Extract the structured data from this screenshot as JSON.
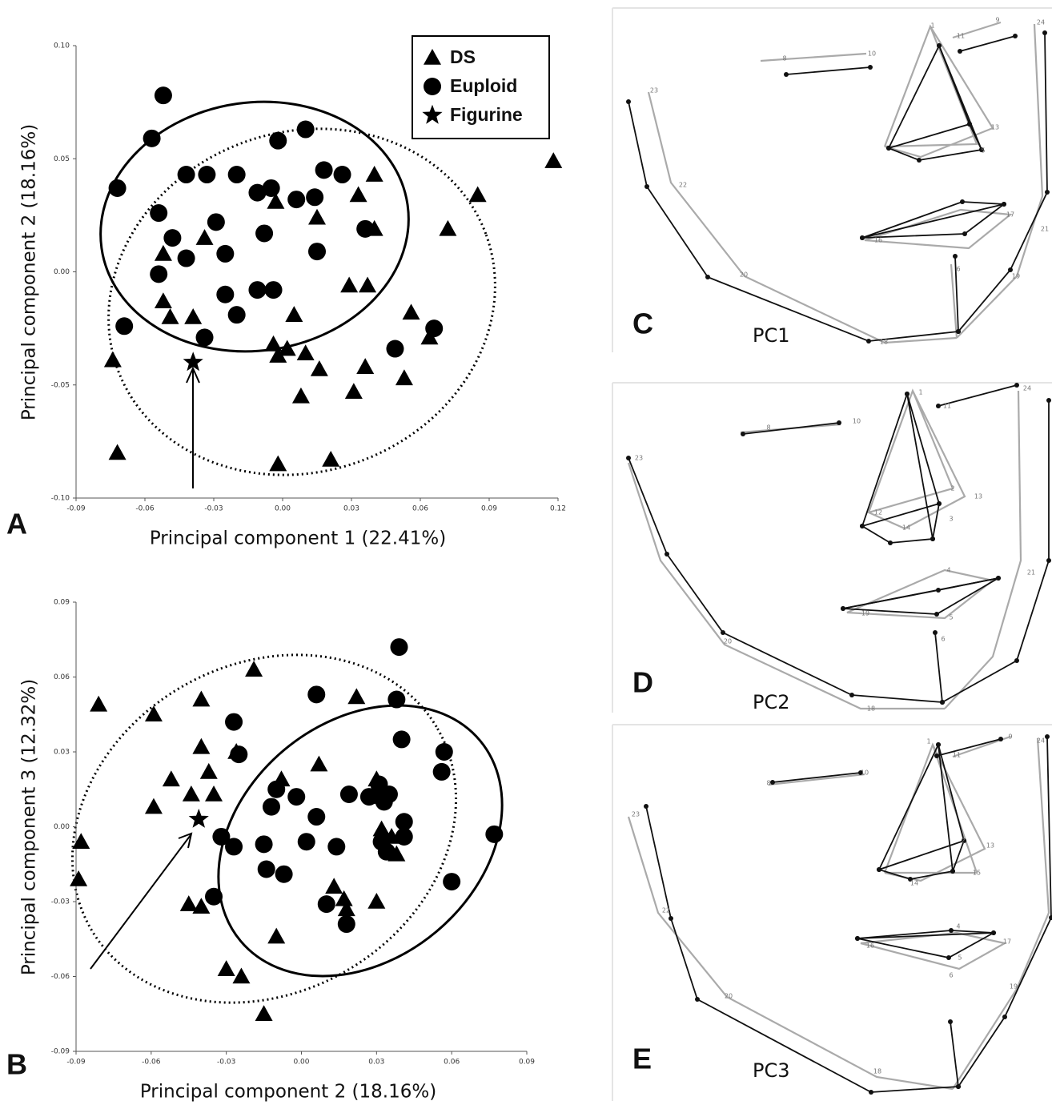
{
  "chart_data": [
    {
      "type": "scatter",
      "panel_label": "A",
      "xlabel": "Principal component 1 (22.41%)",
      "ylabel": "Principal component 2 (18.16%)",
      "xlim": [
        -0.09,
        0.12
      ],
      "ylim": [
        -0.1,
        0.1
      ],
      "xticks": [
        -0.09,
        -0.06,
        -0.03,
        {
          "value": 0,
          "label": "0.00"
        },
        0.03,
        0.06,
        0.09,
        0.12
      ],
      "yticks": [
        {
          "value": 0.1,
          "label": "0.10"
        },
        0.05,
        {
          "value": 0,
          "label": "0.00"
        },
        -0.05,
        {
          "value": -0.1,
          "label": "-0.10"
        }
      ],
      "legend": "upper right",
      "series": [
        {
          "name": "DS",
          "marker": "triangle",
          "color": "#000000",
          "x": [
            0.118,
            0.085,
            0.072,
            0.04,
            0.033,
            0.04,
            0.015,
            -0.003,
            -0.034,
            -0.052,
            0.029,
            0.037,
            -0.052,
            -0.049,
            -0.039,
            0.005,
            -0.004,
            -0.002,
            0.002,
            0.01,
            0.016,
            0.008,
            0.036,
            0.031,
            0.053,
            0.056,
            0.064,
            -0.074,
            -0.072,
            -0.002,
            0.021
          ],
          "values": [
            0.049,
            0.034,
            0.019,
            0.043,
            0.034,
            0.019,
            0.024,
            0.031,
            0.015,
            0.008,
            -0.006,
            -0.006,
            -0.013,
            -0.02,
            -0.02,
            -0.019,
            -0.032,
            -0.037,
            -0.034,
            -0.036,
            -0.043,
            -0.055,
            -0.042,
            -0.053,
            -0.047,
            -0.018,
            -0.029,
            -0.039,
            -0.08,
            -0.085,
            -0.083
          ]
        },
        {
          "name": "Euploid",
          "marker": "circle",
          "color": "#000000",
          "x": [
            -0.052,
            -0.057,
            -0.072,
            -0.002,
            0.01,
            -0.042,
            -0.033,
            -0.02,
            -0.011,
            -0.005,
            0.006,
            0.014,
            0.018,
            0.026,
            -0.054,
            -0.029,
            -0.048,
            -0.008,
            0.036,
            -0.042,
            -0.025,
            0.015,
            -0.054,
            -0.025,
            -0.011,
            -0.004,
            -0.02,
            -0.034,
            -0.069,
            0.049,
            0.066
          ],
          "values": [
            0.078,
            0.059,
            0.037,
            0.058,
            0.063,
            0.043,
            0.043,
            0.043,
            0.035,
            0.037,
            0.032,
            0.033,
            0.045,
            0.043,
            0.026,
            0.022,
            0.015,
            0.017,
            0.019,
            0.006,
            0.008,
            0.009,
            -0.001,
            -0.01,
            -0.008,
            -0.008,
            -0.019,
            -0.029,
            -0.024,
            -0.034,
            -0.025
          ]
        },
        {
          "name": "Figurine",
          "marker": "star",
          "color": "#000000",
          "x": [
            -0.039
          ],
          "values": [
            -0.04
          ]
        }
      ]
    },
    {
      "type": "scatter",
      "panel_label": "B",
      "xlabel": "Principal component 2 (18.16%)",
      "ylabel": "Principal component 3 (12.32%)",
      "xlim": [
        -0.09,
        0.09
      ],
      "ylim": [
        -0.09,
        0.09
      ],
      "xticks": [
        -0.09,
        -0.06,
        -0.03,
        {
          "value": 0,
          "label": "0.00"
        },
        0.03,
        0.06,
        0.09
      ],
      "yticks": [
        0.09,
        0.06,
        0.03,
        {
          "value": 0,
          "label": "0.00"
        },
        -0.03,
        -0.06,
        -0.09
      ],
      "series": [
        {
          "marker": "triangle",
          "color": "#000000",
          "x": [
            -0.081,
            -0.088,
            -0.089,
            -0.059,
            -0.059,
            -0.052,
            -0.044,
            -0.04,
            -0.04,
            -0.037,
            -0.035,
            -0.026,
            -0.019,
            -0.045,
            -0.04,
            -0.03,
            -0.024,
            -0.015,
            -0.01,
            -0.008,
            0.007,
            0.022,
            0.03,
            0.031,
            0.032,
            0.036,
            0.038,
            0.013,
            0.017,
            0.018,
            0.03
          ],
          "values": [
            0.049,
            -0.006,
            -0.021,
            0.045,
            0.008,
            0.019,
            0.013,
            0.051,
            0.032,
            0.022,
            0.013,
            0.03,
            0.063,
            -0.031,
            -0.032,
            -0.057,
            -0.06,
            -0.075,
            -0.044,
            0.019,
            0.025,
            0.052,
            0.019,
            0.012,
            -0.001,
            -0.004,
            -0.011,
            -0.024,
            -0.029,
            -0.033,
            -0.03
          ]
        },
        {
          "marker": "circle",
          "color": "#000000",
          "x": [
            0.039,
            0.038,
            0.006,
            -0.027,
            -0.025,
            0.057,
            0.056,
            0.04,
            -0.01,
            -0.012,
            -0.002,
            0.006,
            0.019,
            0.027,
            0.031,
            0.033,
            0.035,
            0.041,
            -0.032,
            -0.027,
            -0.015,
            -0.014,
            -0.007,
            0.002,
            0.014,
            0.032,
            0.034,
            0.041,
            -0.035,
            0.01,
            0.018,
            0.06,
            0.077
          ],
          "values": [
            0.072,
            0.051,
            0.053,
            0.042,
            0.029,
            0.03,
            0.022,
            0.035,
            0.015,
            0.008,
            0.012,
            0.004,
            0.013,
            0.012,
            0.017,
            0.01,
            0.013,
            0.002,
            -0.004,
            -0.008,
            -0.007,
            -0.017,
            -0.019,
            -0.006,
            -0.008,
            -0.006,
            -0.01,
            -0.004,
            -0.028,
            -0.031,
            -0.039,
            -0.022,
            -0.003
          ]
        },
        {
          "marker": "star",
          "color": "#000000",
          "x": [
            -0.041
          ],
          "values": [
            0.003
          ]
        }
      ]
    }
  ],
  "panels": [
    {
      "letter": "C",
      "label": "PC1",
      "landmarks": [
        "1",
        "9",
        "24",
        "11",
        "8",
        "10",
        "23",
        "22",
        "20",
        "13",
        "5",
        "17",
        "16",
        "6",
        "19",
        "21",
        "18"
      ]
    },
    {
      "letter": "D",
      "label": "PC2",
      "landmarks": [
        "1",
        "24",
        "11",
        "8",
        "10",
        "23",
        "12",
        "2",
        "13",
        "14",
        "3",
        "4",
        "21",
        "19",
        "5",
        "20",
        "6",
        "18"
      ]
    },
    {
      "letter": "E",
      "label": "PC3",
      "landmarks": [
        "1",
        "9",
        "24",
        "11",
        "8",
        "10",
        "23",
        "22",
        "2",
        "13",
        "15",
        "14",
        "4",
        "17",
        "16",
        "5",
        "6",
        "19",
        "20",
        "18"
      ]
    }
  ]
}
